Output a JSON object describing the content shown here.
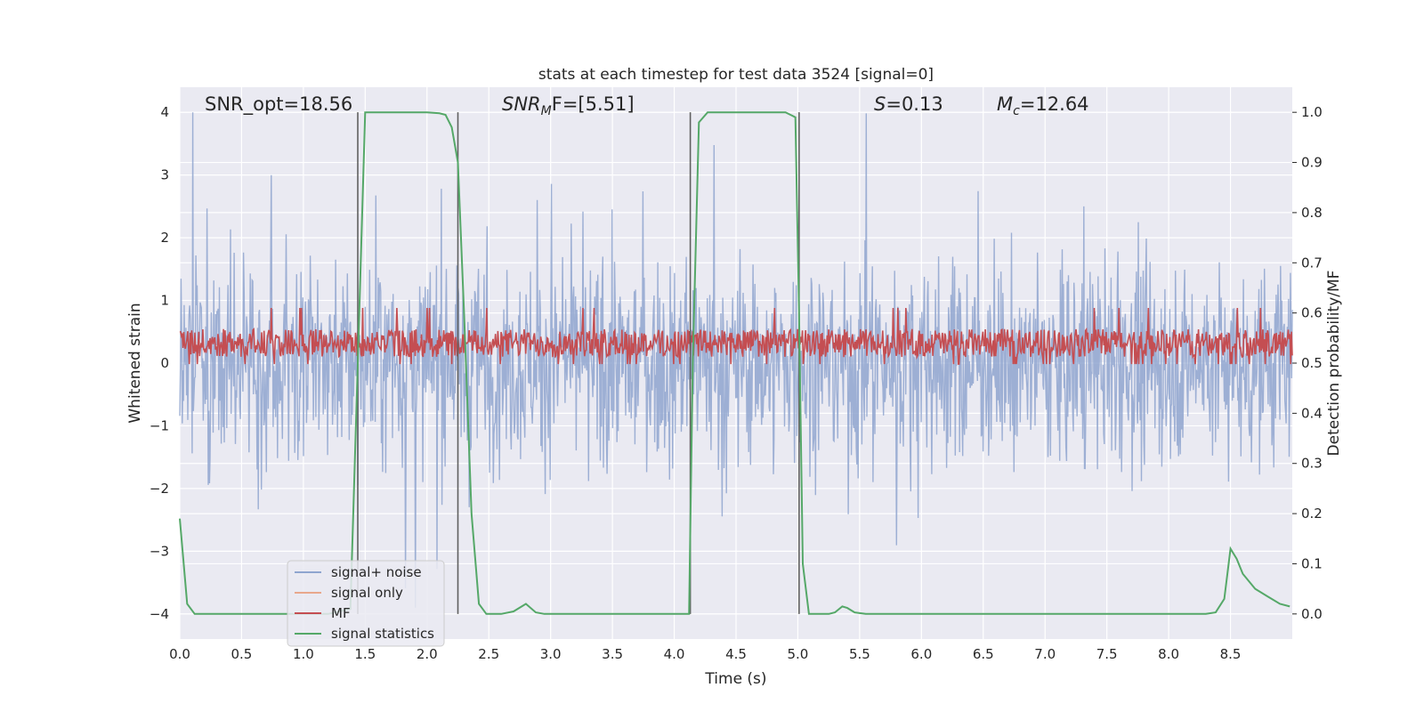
{
  "chart_data": {
    "type": "line",
    "title": "stats at each timestep for test data 3524 [signal=0]",
    "xlabel": "Time (s)",
    "ylabel_left": "Whitened strain",
    "ylabel_right": "Detection probability/MF",
    "xlim": [
      0,
      9.0
    ],
    "ylim_left": [
      -4.4,
      4.4
    ],
    "ylim_right": [
      -0.05,
      1.05
    ],
    "x_ticks": [
      "0.0",
      "0.5",
      "1.0",
      "1.5",
      "2.0",
      "2.5",
      "3.0",
      "3.5",
      "4.0",
      "4.5",
      "5.0",
      "5.5",
      "6.0",
      "6.5",
      "7.0",
      "7.5",
      "8.0",
      "8.5"
    ],
    "y_left_ticks": [
      "4",
      "3",
      "2",
      "1",
      "0",
      "−1",
      "−2",
      "−3",
      "−4"
    ],
    "y_right_ticks": [
      "1.0",
      "0.9",
      "0.8",
      "0.7",
      "0.6",
      "0.5",
      "0.4",
      "0.3",
      "0.2",
      "0.1",
      "0.0"
    ],
    "grid": true,
    "legend_position": "lower-left",
    "annotations": {
      "snr_opt": "SNR_opt=18.56",
      "snr_mf_base": "SNR",
      "snr_mf_sub": "M",
      "snr_mf_rest": "F=[5.51]",
      "s_var": "S",
      "s_rest": "=0.13",
      "mc_var": "M",
      "mc_sub": "c",
      "mc_rest": "=12.64"
    },
    "vertical_markers": [
      1.44,
      2.25,
      4.13,
      5.01
    ],
    "series": [
      {
        "name": "signal+ noise",
        "color": "#8fa5cf",
        "description_axis": "left",
        "noise_amplitude_band": [
          -3.9,
          4.0
        ]
      },
      {
        "name": "signal only",
        "color": "#e8a88c",
        "axis": "left",
        "values": []
      },
      {
        "name": "MF",
        "color": "#c44e52",
        "axis": "right",
        "level_range": [
          0.5,
          0.58
        ]
      },
      {
        "name": "signal statistics",
        "color": "#55a868",
        "axis": "right",
        "x": [
          0.0,
          0.06,
          0.12,
          0.2,
          0.4,
          0.8,
          1.2,
          1.38,
          1.44,
          1.5,
          1.6,
          2.0,
          2.1,
          2.15,
          2.2,
          2.25,
          2.3,
          2.36,
          2.42,
          2.48,
          2.6,
          2.7,
          2.8,
          2.88,
          2.95,
          3.1,
          3.5,
          4.0,
          4.12,
          4.15,
          4.2,
          4.27,
          4.5,
          4.9,
          4.98,
          5.01,
          5.04,
          5.09,
          5.14,
          5.25,
          5.3,
          5.36,
          5.4,
          5.46,
          5.55,
          6.0,
          7.0,
          8.0,
          8.3,
          8.38,
          8.45,
          8.5,
          8.55,
          8.6,
          8.65,
          8.7,
          8.8,
          8.9,
          8.98
        ],
        "values": [
          0.19,
          0.02,
          0.0,
          0.0,
          0.0,
          0.0,
          0.0,
          0.01,
          0.5,
          1.0,
          1.0,
          1.0,
          0.998,
          0.995,
          0.97,
          0.9,
          0.6,
          0.2,
          0.02,
          0.0,
          0.0,
          0.005,
          0.02,
          0.003,
          0.0,
          0.0,
          0.0,
          0.0,
          0.0,
          0.5,
          0.98,
          1.0,
          1.0,
          1.0,
          0.99,
          0.6,
          0.1,
          0.0,
          0.0,
          0.0,
          0.003,
          0.015,
          0.012,
          0.003,
          0.0,
          0.0,
          0.0,
          0.0,
          0.0,
          0.003,
          0.03,
          0.13,
          0.11,
          0.08,
          0.065,
          0.05,
          0.035,
          0.02,
          0.015
        ]
      }
    ]
  }
}
